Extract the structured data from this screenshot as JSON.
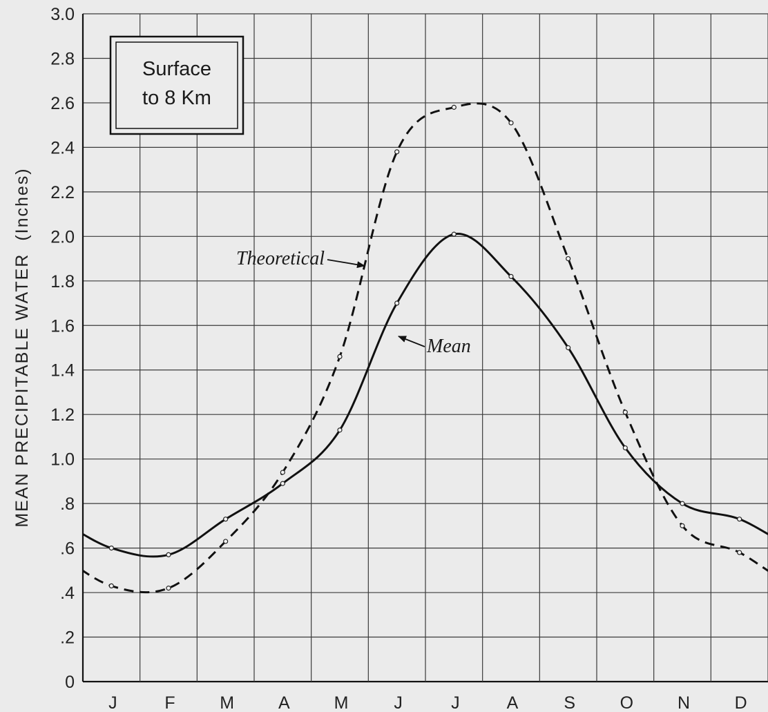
{
  "chart_data": {
    "type": "line",
    "ylabel": "MEAN PRECIPITABLE WATER",
    "ylabel_unit": "(Inches)",
    "ylim": [
      0,
      3.0
    ],
    "yticks": [
      "0",
      ".2",
      ".4",
      ".6",
      ".8",
      "1.0",
      "1.2",
      "1.4",
      "1.6",
      "1.8",
      "2.0",
      "2.2",
      "2.4",
      "2.6",
      "2.8",
      "3.0"
    ],
    "categories": [
      "J",
      "F",
      "M",
      "A",
      "M",
      "J",
      "J",
      "A",
      "S",
      "O",
      "N",
      "D"
    ],
    "grid": true,
    "inset_box": {
      "line1": "Surface",
      "line2": "to 8 Km"
    },
    "series": [
      {
        "name": "Mean",
        "style": "solid",
        "values": [
          0.6,
          0.57,
          0.73,
          0.89,
          1.13,
          1.7,
          2.01,
          1.82,
          1.5,
          1.05,
          0.8,
          0.73
        ]
      },
      {
        "name": "Theoretical",
        "style": "dashed",
        "values": [
          0.43,
          0.42,
          0.63,
          0.94,
          1.46,
          2.38,
          2.58,
          2.51,
          1.9,
          1.21,
          0.7,
          0.58
        ]
      }
    ],
    "annotations": [
      {
        "text": "Theoretical",
        "series": "Theoretical"
      },
      {
        "text": "Mean",
        "series": "Mean"
      }
    ]
  }
}
